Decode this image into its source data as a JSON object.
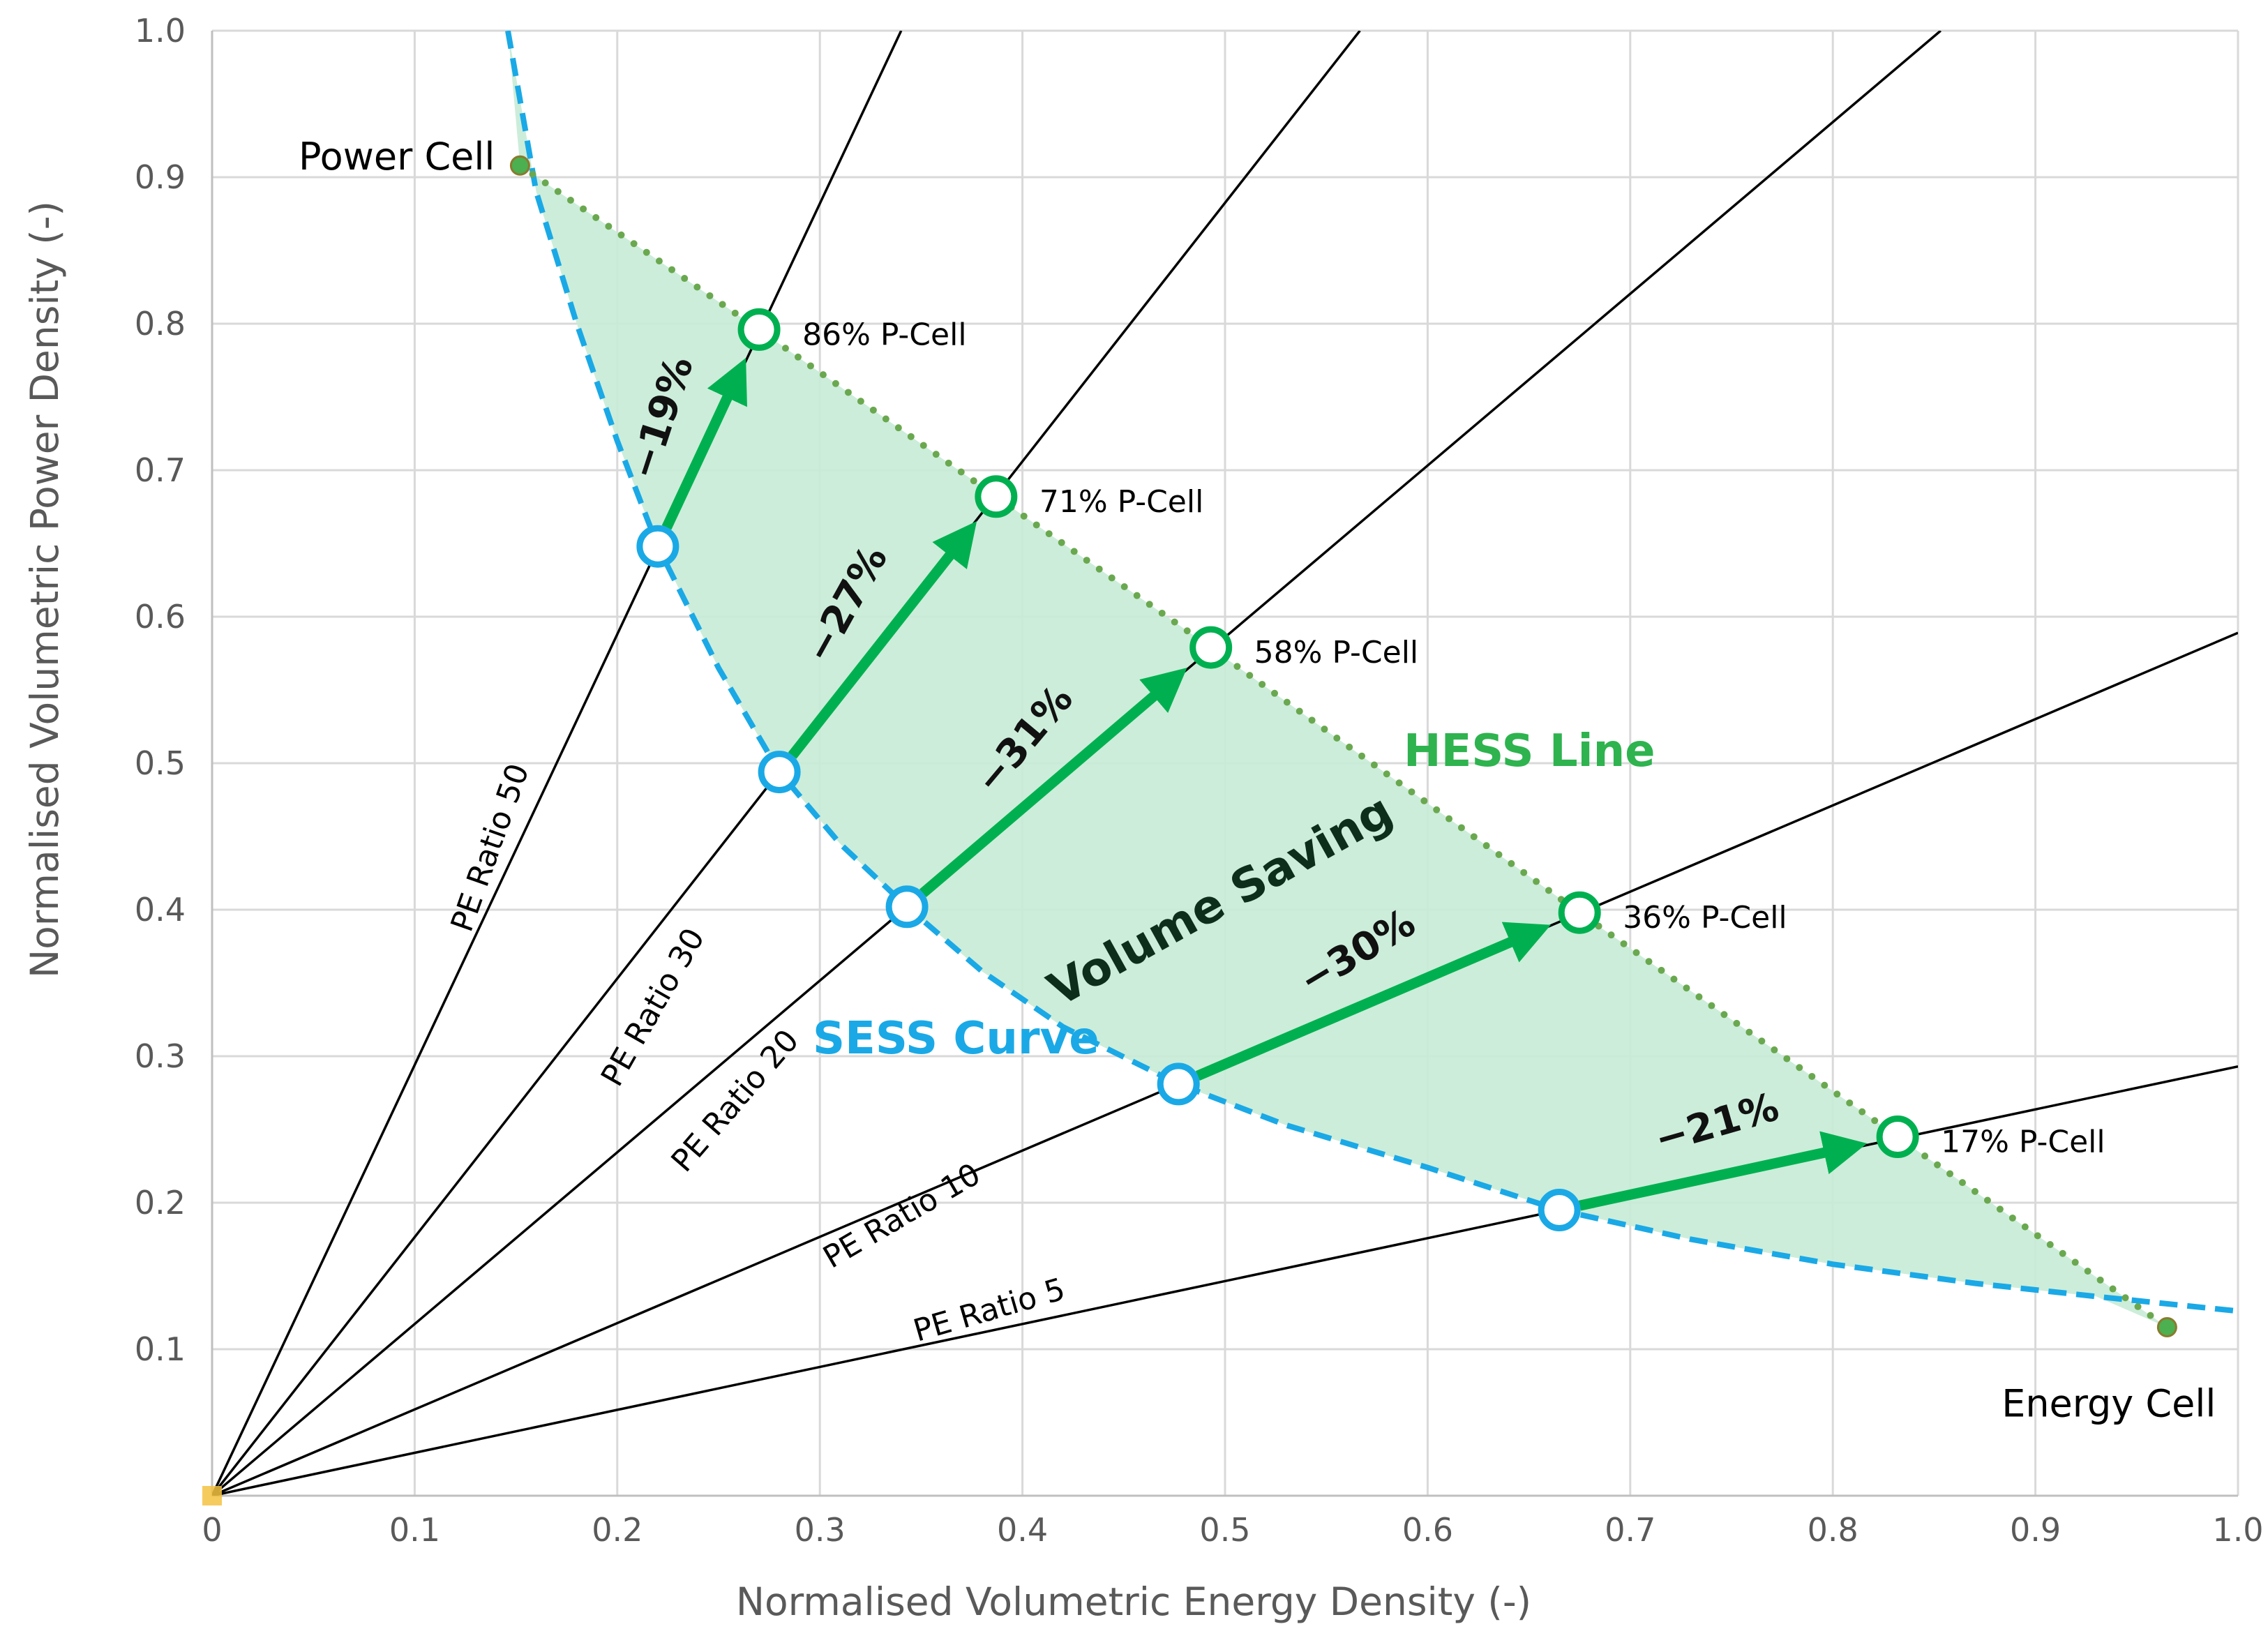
{
  "chart_data": {
    "type": "scatter",
    "xlabel": "Normalised Volumetric Energy Density (-)",
    "ylabel": "Normalised Volumetric Power Density (-)",
    "xlim": [
      0,
      1.0
    ],
    "ylim": [
      0,
      1.0
    ],
    "grid": true,
    "x_ticks": [
      "0",
      "0.1",
      "0.2",
      "0.3",
      "0.4",
      "0.5",
      "0.6",
      "0.7",
      "0.8",
      "0.9",
      "1.0"
    ],
    "y_ticks": [
      "0.1",
      "0.2",
      "0.3",
      "0.4",
      "0.5",
      "0.6",
      "0.7",
      "0.8",
      "0.9",
      "1.0"
    ],
    "colors": {
      "sess": "#1aa9e6",
      "hess": "#6aa84f",
      "arrow": "#00b050",
      "fill": "#c6ebd6",
      "ratio_line": "#000000",
      "grid": "#d9d9d9",
      "cell_point": "#4caf50",
      "origin_point": "#f5c242"
    },
    "cells": {
      "power": {
        "label": "Power Cell",
        "x": 0.152,
        "y": 0.908
      },
      "energy": {
        "label": "Energy Cell",
        "x": 0.965,
        "y": 0.115
      },
      "origin": {
        "x": 0.0,
        "y": 0.0
      }
    },
    "sess_curve": {
      "label": "SESS Curve",
      "points": [
        [
          0.146,
          1.0
        ],
        [
          0.16,
          0.89
        ],
        [
          0.18,
          0.8
        ],
        [
          0.2,
          0.72
        ],
        [
          0.22,
          0.648
        ],
        [
          0.25,
          0.565
        ],
        [
          0.28,
          0.494
        ],
        [
          0.31,
          0.445
        ],
        [
          0.343,
          0.402
        ],
        [
          0.38,
          0.358
        ],
        [
          0.42,
          0.32
        ],
        [
          0.477,
          0.281
        ],
        [
          0.53,
          0.253
        ],
        [
          0.6,
          0.224
        ],
        [
          0.665,
          0.195
        ],
        [
          0.73,
          0.175
        ],
        [
          0.8,
          0.158
        ],
        [
          0.87,
          0.145
        ],
        [
          0.93,
          0.136
        ],
        [
          1.0,
          0.126
        ]
      ]
    },
    "hess_line": {
      "label": "HESS Line"
    },
    "fill_label": "Volume Saving",
    "pe_ratios": [
      {
        "label": "PE Ratio 50",
        "slope": 2.94,
        "label_x": 0.142,
        "label_y": 0.44,
        "label_angle": -70.5
      },
      {
        "label": "PE Ratio 30",
        "slope": 1.765,
        "label_x": 0.222,
        "label_y": 0.33,
        "label_angle": -60.4
      },
      {
        "label": "PE Ratio 20",
        "slope": 1.172,
        "label_x": 0.262,
        "label_y": 0.265,
        "label_angle": -49.2
      },
      {
        "label": "PE Ratio 10",
        "slope": 0.589,
        "label_x": 0.343,
        "label_y": 0.185,
        "label_angle": -30.3
      },
      {
        "label": "PE Ratio 5",
        "slope": 0.293,
        "label_x": 0.385,
        "label_y": 0.12,
        "label_angle": -16.2
      }
    ],
    "transitions": [
      {
        "from": [
          0.22,
          0.648
        ],
        "to": [
          0.27,
          0.796
        ],
        "reduction": "−19%",
        "p_cell": "86% P-Cell",
        "pct_angle": -72
      },
      {
        "from": [
          0.28,
          0.494
        ],
        "to": [
          0.387,
          0.682
        ],
        "reduction": "−27%",
        "p_cell": "71% P-Cell",
        "pct_angle": -61
      },
      {
        "from": [
          0.343,
          0.402
        ],
        "to": [
          0.493,
          0.579
        ],
        "reduction": "−31%",
        "p_cell": "58% P-Cell",
        "pct_angle": -50
      },
      {
        "from": [
          0.477,
          0.281
        ],
        "to": [
          0.675,
          0.398
        ],
        "reduction": "−30%",
        "p_cell": "36% P-Cell",
        "pct_angle": -31
      },
      {
        "from": [
          0.665,
          0.195
        ],
        "to": [
          0.832,
          0.245
        ],
        "reduction": "−21%",
        "p_cell": "17% P-Cell",
        "pct_angle": -16
      }
    ]
  }
}
